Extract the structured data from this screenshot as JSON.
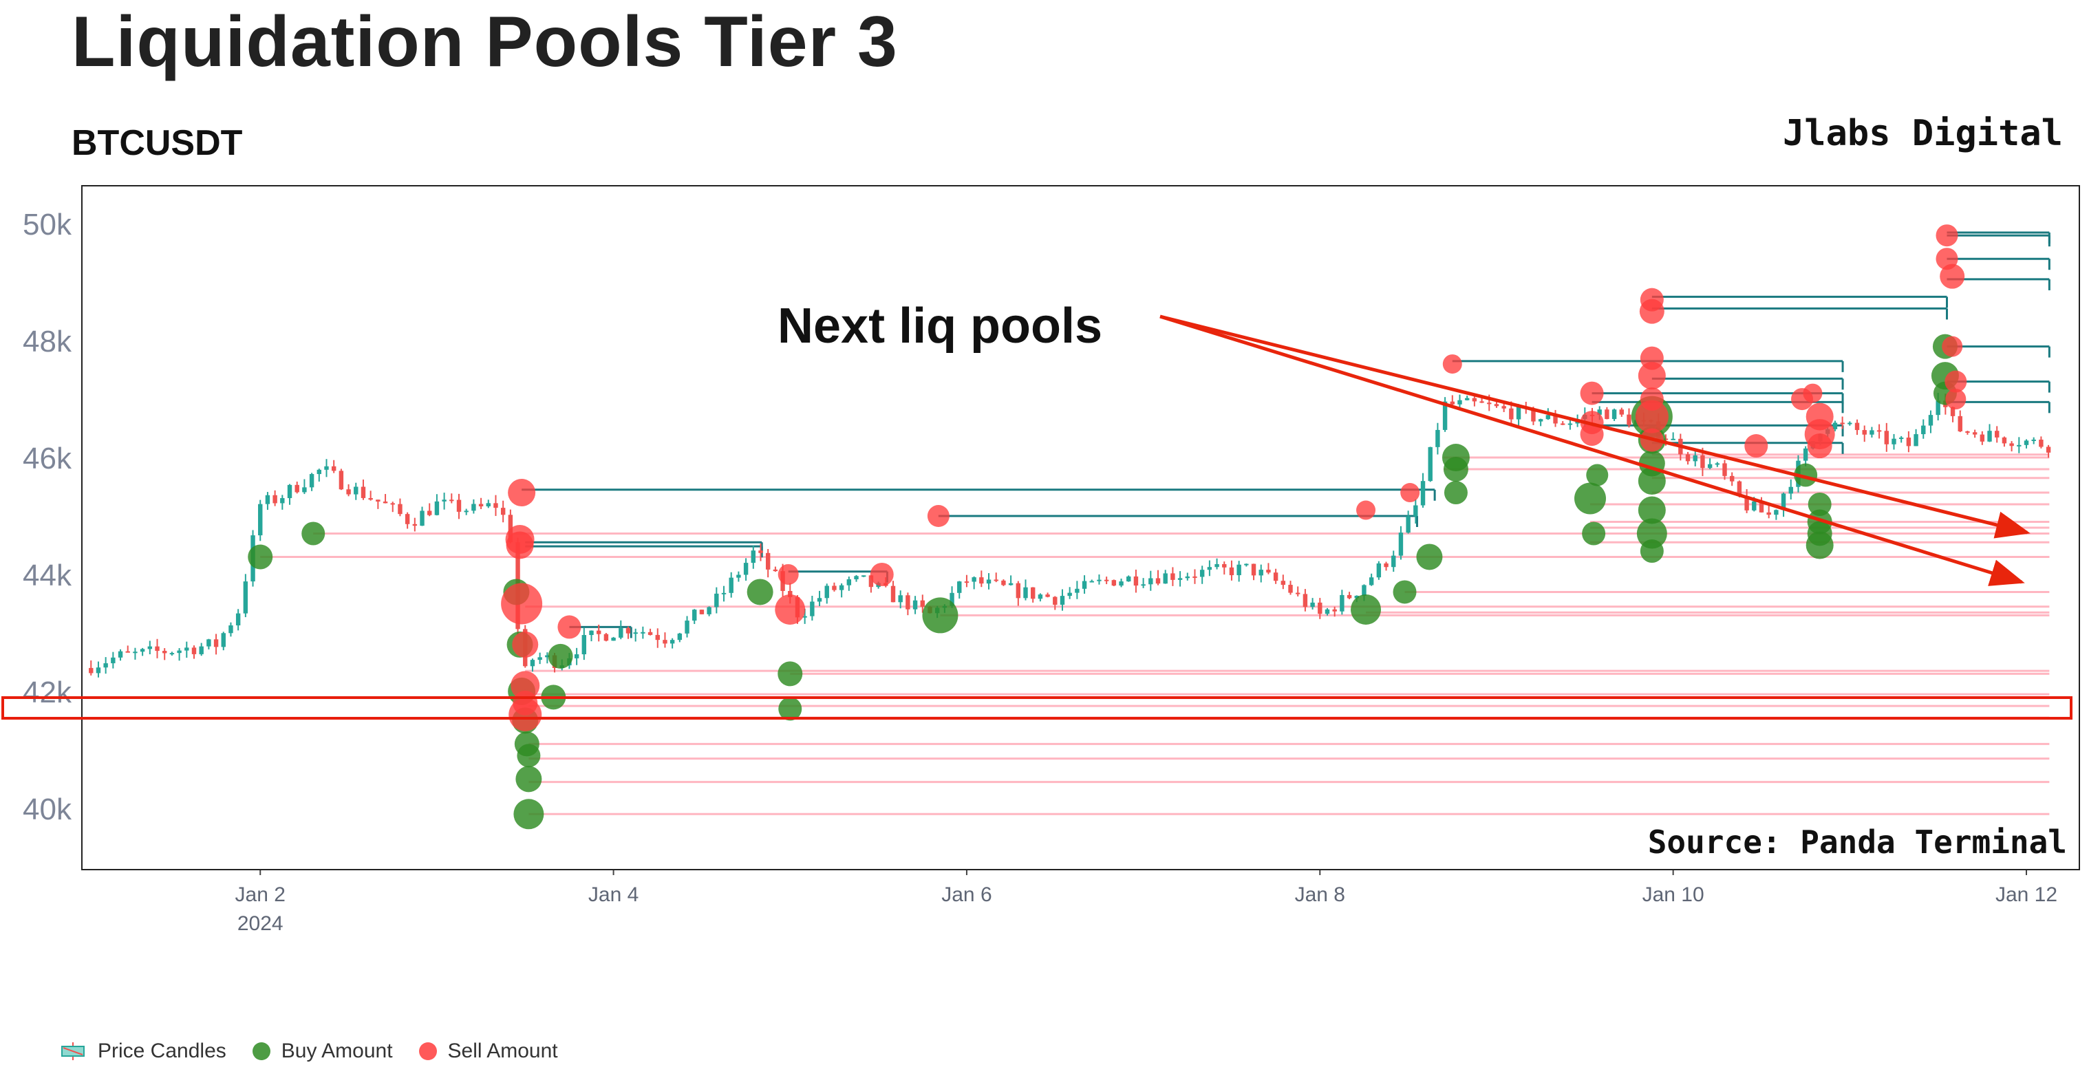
{
  "chart_data": {
    "type": "candlestick",
    "title": "Liquidation Pools Tier 3",
    "subtitle": "BTCUSDT",
    "brand": "Jlabs Digital",
    "source": "Source: Panda Terminal",
    "annotation": "Next liq pools",
    "y_ticks": [
      40000,
      42000,
      44000,
      46000,
      48000,
      50000
    ],
    "y_tick_labels": [
      "40k",
      "42k",
      "44k",
      "46k",
      "48k",
      "50k"
    ],
    "ylim": [
      38950,
      50650
    ],
    "x_ticks": [
      {
        "day": 2,
        "label": "Jan 2",
        "sub": "2024"
      },
      {
        "day": 4,
        "label": "Jan 4",
        "sub": ""
      },
      {
        "day": 6,
        "label": "Jan 6",
        "sub": ""
      },
      {
        "day": 8,
        "label": "Jan 8",
        "sub": ""
      },
      {
        "day": 10,
        "label": "Jan 10",
        "sub": ""
      },
      {
        "day": 12,
        "label": "Jan 12",
        "sub": ""
      }
    ],
    "xlim_days": [
      0.99,
      12.3
    ],
    "price_path": [
      [
        1.0,
        42400
      ],
      [
        1.2,
        42600
      ],
      [
        1.5,
        42700
      ],
      [
        1.75,
        42800
      ],
      [
        1.88,
        43400
      ],
      [
        2.0,
        45200
      ],
      [
        2.1,
        45300
      ],
      [
        2.35,
        45800
      ],
      [
        2.5,
        45500
      ],
      [
        2.7,
        45200
      ],
      [
        2.85,
        44900
      ],
      [
        3.0,
        45200
      ],
      [
        3.2,
        45100
      ],
      [
        3.35,
        45200
      ],
      [
        3.42,
        44600
      ],
      [
        3.48,
        42200
      ],
      [
        3.55,
        42600
      ],
      [
        3.7,
        42500
      ],
      [
        3.85,
        42900
      ],
      [
        4.1,
        43100
      ],
      [
        4.3,
        42900
      ],
      [
        4.6,
        43600
      ],
      [
        4.8,
        44400
      ],
      [
        4.95,
        43800
      ],
      [
        5.05,
        43300
      ],
      [
        5.2,
        43700
      ],
      [
        5.4,
        43900
      ],
      [
        5.6,
        43600
      ],
      [
        5.8,
        43300
      ],
      [
        6.0,
        43900
      ],
      [
        6.3,
        43700
      ],
      [
        6.5,
        43600
      ],
      [
        6.8,
        43900
      ],
      [
        7.2,
        44000
      ],
      [
        7.6,
        44100
      ],
      [
        7.8,
        43800
      ],
      [
        8.0,
        43300
      ],
      [
        8.2,
        43700
      ],
      [
        8.4,
        44300
      ],
      [
        8.55,
        45200
      ],
      [
        8.7,
        46900
      ],
      [
        8.9,
        46900
      ],
      [
        9.2,
        46700
      ],
      [
        9.4,
        46600
      ],
      [
        9.6,
        46800
      ],
      [
        9.8,
        46600
      ],
      [
        9.95,
        46400
      ],
      [
        10.1,
        46000
      ],
      [
        10.25,
        45800
      ],
      [
        10.4,
        45200
      ],
      [
        10.55,
        45000
      ],
      [
        10.7,
        45800
      ],
      [
        10.85,
        46600
      ],
      [
        11.0,
        46500
      ],
      [
        11.2,
        46300
      ],
      [
        11.35,
        46200
      ],
      [
        11.5,
        47100
      ],
      [
        11.6,
        46500
      ],
      [
        11.75,
        46400
      ],
      [
        11.95,
        46300
      ],
      [
        12.15,
        46200
      ]
    ],
    "buy_pools": [
      {
        "x": 2.0,
        "y": 44300,
        "s": 18
      },
      {
        "x": 2.3,
        "y": 44700,
        "s": 17
      },
      {
        "x": 3.45,
        "y": 43700,
        "s": 19
      },
      {
        "x": 3.47,
        "y": 42800,
        "s": 19
      },
      {
        "x": 3.48,
        "y": 42000,
        "s": 20
      },
      {
        "x": 3.5,
        "y": 41500,
        "s": 19
      },
      {
        "x": 3.51,
        "y": 41100,
        "s": 18
      },
      {
        "x": 3.52,
        "y": 40900,
        "s": 17
      },
      {
        "x": 3.52,
        "y": 40500,
        "s": 19
      },
      {
        "x": 3.52,
        "y": 39900,
        "s": 22
      },
      {
        "x": 3.66,
        "y": 41900,
        "s": 18
      },
      {
        "x": 3.7,
        "y": 42600,
        "s": 18
      },
      {
        "x": 4.83,
        "y": 43700,
        "s": 19
      },
      {
        "x": 5.0,
        "y": 42300,
        "s": 18
      },
      {
        "x": 5.0,
        "y": 41700,
        "s": 17
      },
      {
        "x": 5.85,
        "y": 43300,
        "s": 26
      },
      {
        "x": 8.26,
        "y": 43400,
        "s": 22
      },
      {
        "x": 8.48,
        "y": 43700,
        "s": 17
      },
      {
        "x": 8.62,
        "y": 44300,
        "s": 19
      },
      {
        "x": 8.77,
        "y": 46000,
        "s": 20
      },
      {
        "x": 8.77,
        "y": 45800,
        "s": 18
      },
      {
        "x": 8.77,
        "y": 45400,
        "s": 17
      },
      {
        "x": 9.53,
        "y": 45300,
        "s": 23
      },
      {
        "x": 9.55,
        "y": 44700,
        "s": 17
      },
      {
        "x": 9.57,
        "y": 45700,
        "s": 16
      },
      {
        "x": 9.88,
        "y": 46700,
        "s": 30
      },
      {
        "x": 9.88,
        "y": 46300,
        "s": 20
      },
      {
        "x": 9.88,
        "y": 45900,
        "s": 19
      },
      {
        "x": 9.88,
        "y": 45600,
        "s": 20
      },
      {
        "x": 9.88,
        "y": 45100,
        "s": 20
      },
      {
        "x": 9.88,
        "y": 44700,
        "s": 22
      },
      {
        "x": 9.88,
        "y": 44400,
        "s": 17
      },
      {
        "x": 10.75,
        "y": 45700,
        "s": 17
      },
      {
        "x": 10.83,
        "y": 45200,
        "s": 17
      },
      {
        "x": 10.83,
        "y": 44900,
        "s": 18
      },
      {
        "x": 10.83,
        "y": 44700,
        "s": 18
      },
      {
        "x": 10.83,
        "y": 44500,
        "s": 20
      },
      {
        "x": 11.54,
        "y": 47900,
        "s": 18
      },
      {
        "x": 11.54,
        "y": 47400,
        "s": 20
      },
      {
        "x": 11.54,
        "y": 47100,
        "s": 17
      }
    ],
    "sell_pools": [
      {
        "x": 3.48,
        "y": 45400,
        "s": 20
      },
      {
        "x": 3.47,
        "y": 44600,
        "s": 21
      },
      {
        "x": 3.47,
        "y": 44500,
        "s": 20
      },
      {
        "x": 3.48,
        "y": 43500,
        "s": 30
      },
      {
        "x": 3.5,
        "y": 42800,
        "s": 19
      },
      {
        "x": 3.5,
        "y": 42100,
        "s": 21
      },
      {
        "x": 3.5,
        "y": 41800,
        "s": 18
      },
      {
        "x": 3.5,
        "y": 41600,
        "s": 24
      },
      {
        "x": 3.75,
        "y": 43100,
        "s": 17
      },
      {
        "x": 4.99,
        "y": 44000,
        "s": 15
      },
      {
        "x": 5.0,
        "y": 43400,
        "s": 22
      },
      {
        "x": 5.52,
        "y": 44000,
        "s": 17
      },
      {
        "x": 5.84,
        "y": 45000,
        "s": 16
      },
      {
        "x": 8.26,
        "y": 45100,
        "s": 14
      },
      {
        "x": 8.51,
        "y": 45400,
        "s": 14
      },
      {
        "x": 8.75,
        "y": 47600,
        "s": 14
      },
      {
        "x": 9.54,
        "y": 47100,
        "s": 17
      },
      {
        "x": 9.54,
        "y": 46600,
        "s": 17
      },
      {
        "x": 9.54,
        "y": 46400,
        "s": 17
      },
      {
        "x": 9.88,
        "y": 48700,
        "s": 17
      },
      {
        "x": 9.88,
        "y": 48500,
        "s": 18
      },
      {
        "x": 9.88,
        "y": 47700,
        "s": 17
      },
      {
        "x": 9.88,
        "y": 47400,
        "s": 20
      },
      {
        "x": 9.88,
        "y": 47000,
        "s": 17
      },
      {
        "x": 9.88,
        "y": 46700,
        "s": 24
      },
      {
        "x": 9.88,
        "y": 46300,
        "s": 17
      },
      {
        "x": 10.47,
        "y": 46200,
        "s": 17
      },
      {
        "x": 10.73,
        "y": 47000,
        "s": 16
      },
      {
        "x": 10.79,
        "y": 47100,
        "s": 14
      },
      {
        "x": 10.83,
        "y": 46700,
        "s": 20
      },
      {
        "x": 10.83,
        "y": 46400,
        "s": 22
      },
      {
        "x": 10.83,
        "y": 46200,
        "s": 18
      },
      {
        "x": 11.55,
        "y": 49800,
        "s": 16
      },
      {
        "x": 11.55,
        "y": 49400,
        "s": 16
      },
      {
        "x": 11.58,
        "y": 49100,
        "s": 18
      },
      {
        "x": 11.58,
        "y": 47900,
        "s": 15
      },
      {
        "x": 11.6,
        "y": 47300,
        "s": 16
      },
      {
        "x": 11.6,
        "y": 47000,
        "s": 15
      }
    ],
    "teal_levels": [
      {
        "from": 3.48,
        "to": 8.65,
        "y": 45450
      },
      {
        "from": 5.84,
        "to": 8.55,
        "y": 45000
      },
      {
        "from": 3.5,
        "to": 4.84,
        "y": 44550
      },
      {
        "from": 3.5,
        "to": 4.84,
        "y": 44480
      },
      {
        "from": 4.99,
        "to": 5.55,
        "y": 44050
      },
      {
        "from": 3.75,
        "to": 4.1,
        "y": 43100
      },
      {
        "from": 8.75,
        "to": 10.96,
        "y": 47650
      },
      {
        "from": 9.54,
        "to": 10.96,
        "y": 47100
      },
      {
        "from": 9.54,
        "to": 10.96,
        "y": 46950
      },
      {
        "from": 9.54,
        "to": 10.96,
        "y": 46550
      },
      {
        "from": 9.88,
        "to": 11.55,
        "y": 48750
      },
      {
        "from": 9.88,
        "to": 11.55,
        "y": 48550
      },
      {
        "from": 9.88,
        "to": 10.96,
        "y": 47350
      },
      {
        "from": 9.88,
        "to": 10.96,
        "y": 46250
      },
      {
        "from": 11.55,
        "to": 12.13,
        "y": 49850
      },
      {
        "from": 11.55,
        "to": 12.13,
        "y": 49800
      },
      {
        "from": 11.55,
        "to": 12.13,
        "y": 49400
      },
      {
        "from": 11.55,
        "to": 12.13,
        "y": 49050
      },
      {
        "from": 11.55,
        "to": 12.13,
        "y": 47900
      },
      {
        "from": 11.55,
        "to": 12.13,
        "y": 47300
      },
      {
        "from": 11.55,
        "to": 12.13,
        "y": 46950
      }
    ],
    "pink_levels": [
      {
        "from": 2.0,
        "y": 44300
      },
      {
        "from": 2.3,
        "y": 44700
      },
      {
        "from": 3.5,
        "y": 43450
      },
      {
        "from": 3.5,
        "y": 42350
      },
      {
        "from": 3.5,
        "y": 41950
      },
      {
        "from": 3.52,
        "y": 41750
      },
      {
        "from": 3.52,
        "y": 41550
      },
      {
        "from": 3.52,
        "y": 41100
      },
      {
        "from": 3.52,
        "y": 40850
      },
      {
        "from": 3.52,
        "y": 40450
      },
      {
        "from": 3.52,
        "y": 39900
      },
      {
        "from": 5.0,
        "y": 42300
      },
      {
        "from": 5.85,
        "y": 43300
      },
      {
        "from": 8.26,
        "y": 43350
      },
      {
        "from": 8.48,
        "y": 43700
      },
      {
        "from": 8.62,
        "y": 44300
      },
      {
        "from": 8.7,
        "y": 46000
      },
      {
        "from": 8.7,
        "y": 45800
      },
      {
        "from": 9.53,
        "y": 45200
      },
      {
        "from": 9.53,
        "y": 44900
      },
      {
        "from": 9.53,
        "y": 44800
      },
      {
        "from": 9.53,
        "y": 44550
      },
      {
        "from": 9.88,
        "y": 46050
      },
      {
        "from": 9.88,
        "y": 45650
      },
      {
        "from": 9.88,
        "y": 45400
      }
    ]
  },
  "legend": {
    "candles": "Price Candles",
    "buy": "Buy Amount",
    "sell": "Sell Amount"
  },
  "colors": {
    "up": "#26a69a",
    "down": "#ef5350",
    "buy": "#2e8b22",
    "sell": "#ff3c3c",
    "teal_line": "#1a7a80",
    "pink_line": "#ffb6c1",
    "highlight": "#e81e0c",
    "arrow": "#e8250c"
  }
}
